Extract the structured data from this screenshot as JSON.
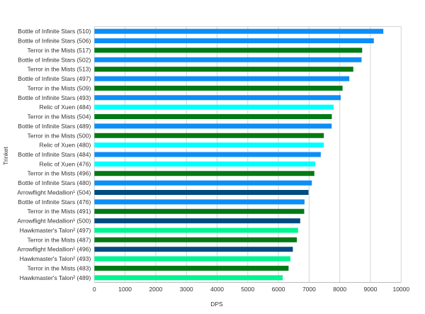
{
  "chart_data": {
    "type": "bar",
    "orientation": "horizontal",
    "xlabel": "DPS",
    "ylabel": "Trinket",
    "xlim": [
      0,
      10000
    ],
    "xticks": [
      "0",
      "1000",
      "2000",
      "3000",
      "4000",
      "5000",
      "6000",
      "7000",
      "8000",
      "9000",
      "10000"
    ],
    "grid": true,
    "legend": "none",
    "categories": [
      "Bottle of Infinite Stars (510)",
      "Bottle of Infinite Stars (506)",
      "Terror in the Mists (517)",
      "Bottle of Infinite Stars (502)",
      "Terror in the Mists (513)",
      "Bottle of Infinite Stars (497)",
      "Terror in the Mists (509)",
      "Bottle of Infinite Stars (493)",
      "Relic of Xuen (484)",
      "Terror in the Mists (504)",
      "Bottle of Infinite Stars (489)",
      "Terror in the Mists (500)",
      "Relic of Xuen (480)",
      "Bottle of Infinite Stars (484)",
      "Relic of Xuen (476)",
      "Terror in the Mists (496)",
      "Bottle of Infinite Stars (480)",
      "Arrowflight Medallion¹ (504)",
      "Bottle of Infinite Stars (476)",
      "Terror in the Mists (491)",
      "Arrowflight Medallion¹ (500)",
      "Hawkmaster's Talon² (497)",
      "Terror in the Mists (487)",
      "Arrowflight Medallion¹ (496)",
      "Hawkmaster's Talon² (493)",
      "Terror in the Mists (483)",
      "Hawkmaster's Talon² (489)"
    ],
    "values": [
      9420,
      9110,
      8730,
      8710,
      8440,
      8310,
      8090,
      8030,
      7800,
      7740,
      7735,
      7480,
      7480,
      7380,
      7200,
      7170,
      7090,
      6980,
      6850,
      6840,
      6710,
      6640,
      6600,
      6470,
      6390,
      6330,
      6140
    ],
    "colors": {
      "Bottle of Infinite Stars": "#0d8ef7",
      "Terror in the Mists": "#007a14",
      "Relic of Xuen": "#00ffff",
      "Arrowflight Medallion": "#004c80",
      "Hawkmaster's Talon": "#00f591"
    }
  }
}
